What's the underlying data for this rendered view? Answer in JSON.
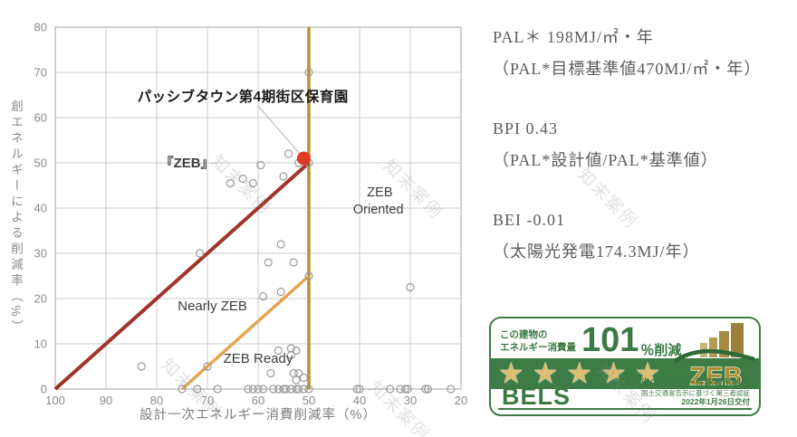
{
  "watermark": {
    "text": "知末案例"
  },
  "chart_data": {
    "type": "scatter",
    "title": "",
    "xlabel": "設計一次エネルギー消費削減率（%）",
    "ylabel": "創エネルギーによる削減率（%）",
    "xlim": [
      100,
      20
    ],
    "ylim": [
      0,
      80
    ],
    "xticks": [
      100,
      90,
      80,
      70,
      60,
      50,
      40,
      30,
      20
    ],
    "yticks": [
      0,
      10,
      20,
      30,
      40,
      50,
      60,
      70,
      80
    ],
    "grid": true,
    "grid_color": "#cbcbcb",
    "boundary_lines": [
      {
        "name": "zeb-ready-vertical",
        "from": [
          50,
          0
        ],
        "to": [
          50,
          80
        ],
        "color": "#b2952c",
        "width": 3.5
      },
      {
        "name": "nearly-zeb",
        "from": [
          75,
          0
        ],
        "to": [
          50,
          25
        ],
        "color": "#e5a450",
        "width": 3.5
      },
      {
        "name": "zeb",
        "from": [
          100,
          0
        ],
        "to": [
          50,
          50
        ],
        "color": "#a23329",
        "width": 4
      }
    ],
    "region_labels": [
      {
        "text": "『ZEB』",
        "x": 74,
        "y": 50,
        "bold": true,
        "size": 15
      },
      {
        "text": "ZEB",
        "x": 36,
        "y": 43.6,
        "size": 14.5
      },
      {
        "text": "Oriented",
        "x": 36.3,
        "y": 39.8,
        "size": 14.5
      },
      {
        "text": "Nearly ZEB",
        "x": 69,
        "y": 18.4,
        "size": 15
      },
      {
        "text": "ZEB Ready",
        "x": 60,
        "y": 6.8,
        "size": 15
      }
    ],
    "points": [
      [
        50,
        70
      ],
      [
        54,
        52
      ],
      [
        52,
        50
      ],
      [
        50,
        50
      ],
      [
        59.5,
        49.5
      ],
      [
        55,
        47
      ],
      [
        63,
        46.5
      ],
      [
        61,
        45.5
      ],
      [
        65.5,
        45.5
      ],
      [
        71.5,
        30
      ],
      [
        55.5,
        32
      ],
      [
        58,
        28
      ],
      [
        53,
        28
      ],
      [
        50,
        25
      ],
      [
        55.5,
        21.5
      ],
      [
        59,
        20.5
      ],
      [
        30,
        22.5
      ],
      [
        83,
        5
      ],
      [
        70,
        5
      ],
      [
        56,
        8.5
      ],
      [
        53.5,
        9
      ],
      [
        52.5,
        8.5
      ],
      [
        53.5,
        7.5
      ],
      [
        57.5,
        3.5
      ],
      [
        53,
        3.5
      ],
      [
        52,
        3.5
      ],
      [
        52.5,
        2
      ],
      [
        51,
        2.5
      ],
      [
        75,
        0
      ],
      [
        72,
        0
      ],
      [
        68,
        0
      ],
      [
        62,
        0
      ],
      [
        61,
        0
      ],
      [
        60,
        0
      ],
      [
        59,
        0
      ],
      [
        57,
        0
      ],
      [
        56,
        0
      ],
      [
        55,
        0
      ],
      [
        54.5,
        0
      ],
      [
        53.5,
        0
      ],
      [
        52.5,
        0
      ],
      [
        52,
        0
      ],
      [
        51,
        0
      ],
      [
        50,
        0
      ],
      [
        40.5,
        0
      ],
      [
        40,
        0
      ],
      [
        34,
        0
      ],
      [
        32,
        0
      ],
      [
        31,
        0
      ],
      [
        30.5,
        0
      ],
      [
        27,
        0
      ],
      [
        26.5,
        0
      ],
      [
        22,
        0
      ]
    ],
    "point_style": {
      "radius": 4,
      "stroke": "#9b9b9b"
    },
    "highlight": {
      "x": 51,
      "y": 51,
      "radius": 7.5,
      "color": "#e13a24",
      "label": "パッシブタウン第4期街区保育園",
      "label_pos": [
        63,
        64.6
      ],
      "leader_from": [
        60,
        62.6
      ],
      "leader_to": [
        51.8,
        52
      ]
    }
  },
  "metrics": [
    {
      "main": "PAL＊ 198MJ/㎡・年",
      "sub": "（PAL*目標基準値470MJ/㎡・年）"
    },
    {
      "main": "BPI 0.43",
      "sub": "（PAL*設計値/PAL*基準値）"
    },
    {
      "main": "BEI -0.01",
      "sub": "（太陽光発電174.3MJ/年）"
    }
  ],
  "bels": {
    "line1": "この建物の",
    "line2": "エネルギー消費量",
    "value": "101",
    "unit": "％削減",
    "stars": 5,
    "zeb_logo_text": "ZEB",
    "brand": "BELS",
    "sub1": "建築物省エネルギー性能表示制度",
    "sub2": "国土交通省告示に基づく第三者認証",
    "sub3": "2022年1月26日交付",
    "green": "#3b7a43",
    "band_green": "#3e7c46",
    "gold": "#ae8e35",
    "star_gold": "#dcbd72"
  }
}
